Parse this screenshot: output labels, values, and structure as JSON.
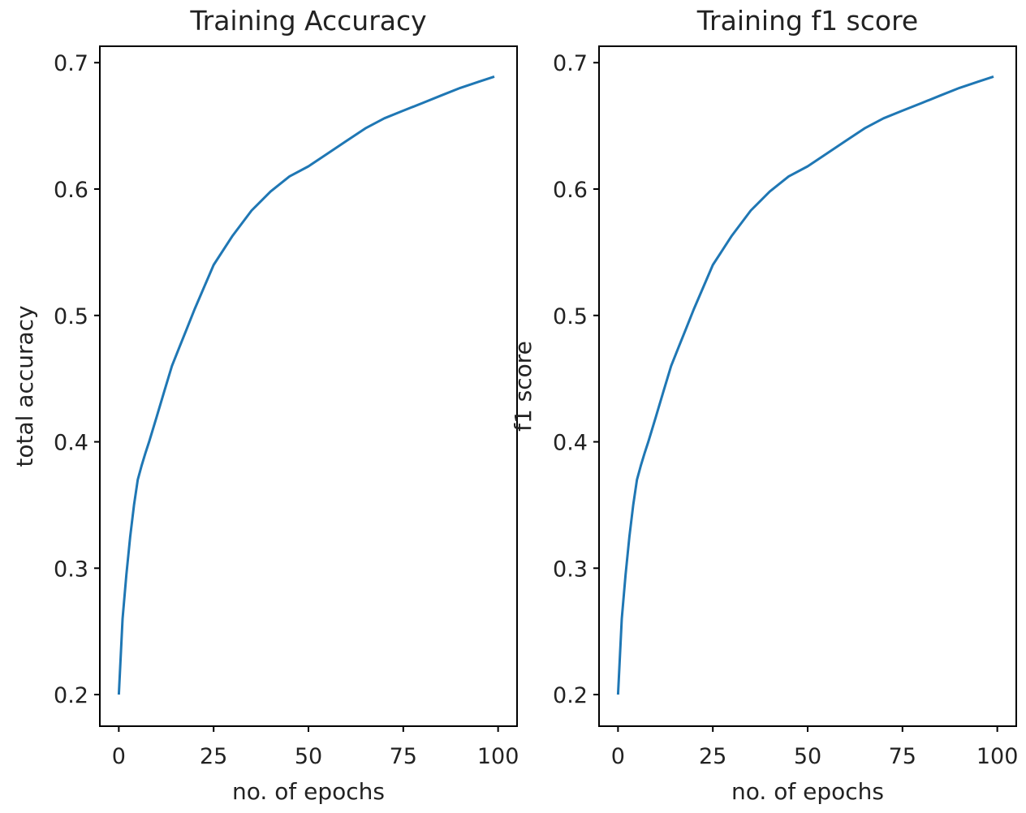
{
  "chart_data": [
    {
      "type": "line",
      "title": "Training Accuracy",
      "xlabel": "no. of epochs",
      "ylabel": "total accuracy",
      "xlim": [
        -5,
        105
      ],
      "ylim": [
        0.175,
        0.713
      ],
      "xticks": [
        0,
        25,
        50,
        75,
        100
      ],
      "yticks": [
        0.2,
        0.3,
        0.4,
        0.5,
        0.6,
        0.7
      ],
      "ytick_labels": [
        "0.2",
        "0.3",
        "0.4",
        "0.5",
        "0.6",
        "0.7"
      ],
      "grid": false,
      "color": "#1f77b4",
      "x": [
        0,
        1,
        2,
        3,
        4,
        5,
        6,
        7,
        8,
        10,
        12,
        14,
        16,
        18,
        20,
        25,
        30,
        35,
        40,
        45,
        50,
        55,
        60,
        65,
        70,
        75,
        80,
        85,
        90,
        95,
        99
      ],
      "y": [
        0.2,
        0.26,
        0.295,
        0.325,
        0.35,
        0.37,
        0.381,
        0.391,
        0.4,
        0.42,
        0.44,
        0.46,
        0.475,
        0.49,
        0.505,
        0.54,
        0.563,
        0.583,
        0.598,
        0.61,
        0.618,
        0.628,
        0.638,
        0.648,
        0.656,
        0.662,
        0.668,
        0.674,
        0.68,
        0.685,
        0.689
      ]
    },
    {
      "type": "line",
      "title": "Training f1 score",
      "xlabel": "no. of epochs",
      "ylabel": "f1 score",
      "xlim": [
        -5,
        105
      ],
      "ylim": [
        0.175,
        0.713
      ],
      "xticks": [
        0,
        25,
        50,
        75,
        100
      ],
      "yticks": [
        0.2,
        0.3,
        0.4,
        0.5,
        0.6,
        0.7
      ],
      "ytick_labels": [
        "0.2",
        "0.3",
        "0.4",
        "0.5",
        "0.6",
        "0.7"
      ],
      "grid": false,
      "color": "#1f77b4",
      "x": [
        0,
        1,
        2,
        3,
        4,
        5,
        6,
        7,
        8,
        10,
        12,
        14,
        16,
        18,
        20,
        25,
        30,
        35,
        40,
        45,
        50,
        55,
        60,
        65,
        70,
        75,
        80,
        85,
        90,
        95,
        99
      ],
      "y": [
        0.2,
        0.26,
        0.295,
        0.325,
        0.35,
        0.37,
        0.381,
        0.391,
        0.4,
        0.42,
        0.44,
        0.46,
        0.475,
        0.49,
        0.505,
        0.54,
        0.563,
        0.583,
        0.598,
        0.61,
        0.618,
        0.628,
        0.638,
        0.648,
        0.656,
        0.662,
        0.668,
        0.674,
        0.68,
        0.685,
        0.689
      ]
    }
  ]
}
